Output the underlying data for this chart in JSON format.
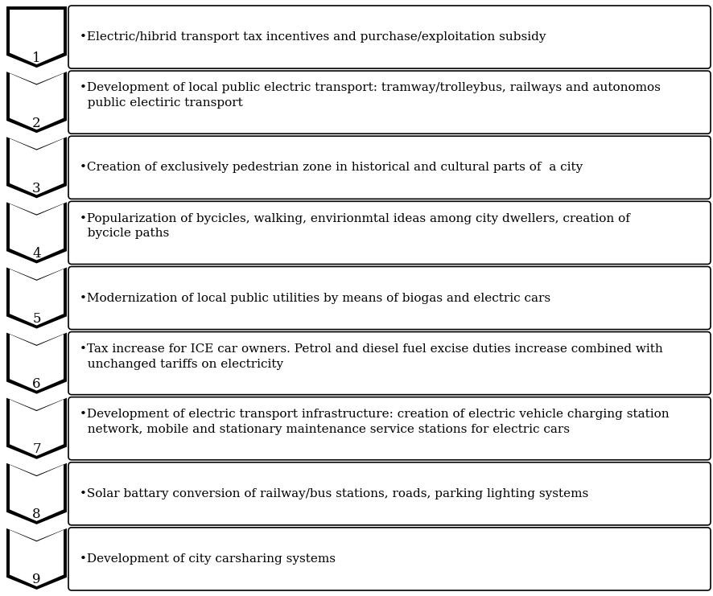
{
  "items": [
    {
      "number": "1",
      "text": "•Electric/hibrid transport tax incentives and purchase/exploitation subsidy",
      "two_lines": false
    },
    {
      "number": "2",
      "text": "•Development of local public electric transport: tramway/trolleybus, railways and autonomos\n  public electiric transport",
      "two_lines": true
    },
    {
      "number": "3",
      "text": "•Creation of exclusively pedestrian zone in historical and cultural parts of  a city",
      "two_lines": false
    },
    {
      "number": "4",
      "text": "•Popularization of bycicles, walking, envirionmtal ideas among city dwellers, creation of\n  bycicle paths",
      "two_lines": true
    },
    {
      "number": "5",
      "text": "•Modernization of local public utilities by means of biogas and electric cars",
      "two_lines": false
    },
    {
      "number": "6",
      "text": "•Tax increase for ICE car owners. Petrol and diesel fuel excise duties increase combined with\n  unchanged tariffs on electricity",
      "two_lines": true
    },
    {
      "number": "7",
      "text": "•Development of electric transport infrastructure: creation of electric vehicle charging station\n  network, mobile and stationary maintenance service stations for electric cars",
      "two_lines": true
    },
    {
      "number": "8",
      "text": "•Solar battary conversion of railway/bus stations, roads, parking lighting systems",
      "two_lines": false
    },
    {
      "number": "9",
      "text": "•Development of city carsharing systems",
      "two_lines": false
    }
  ],
  "bg_color": "#ffffff",
  "box_fill": "#ffffff",
  "box_edge": "#000000",
  "arrow_fill": "#000000",
  "arrow_outline": "#000000",
  "number_color": "#000000",
  "text_color": "#000000",
  "font_size": 11.0,
  "number_font_size": 12
}
